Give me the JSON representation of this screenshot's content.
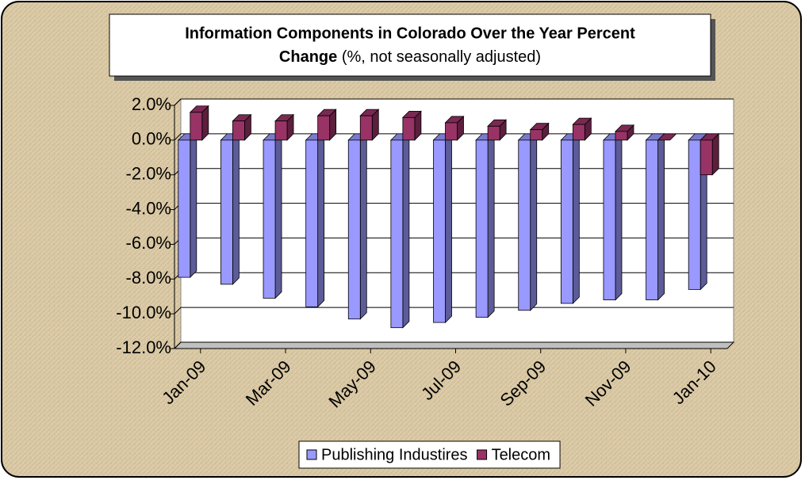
{
  "chart_data": {
    "type": "bar3d",
    "title_lines": [
      "Information Components in Colorado Over the Year Percent",
      "Change"
    ],
    "subtitle": "(%, not seasonally adjusted)",
    "categories": [
      "Jan-09",
      null,
      "Mar-09",
      null,
      "May-09",
      null,
      "Jul-09",
      null,
      "Sep-09",
      null,
      "Nov-09",
      null,
      "Jan-10"
    ],
    "series": [
      {
        "name": "Publishing Industires",
        "color": "#9999ff",
        "values": [
          -7.9,
          -8.3,
          -9.1,
          -9.6,
          -10.3,
          -10.8,
          -10.5,
          -10.2,
          -9.8,
          -9.4,
          -9.2,
          -9.2,
          -8.6
        ]
      },
      {
        "name": "Telecom",
        "color": "#993366",
        "values": [
          1.6,
          1.1,
          1.1,
          1.4,
          1.4,
          1.3,
          1.0,
          0.8,
          0.6,
          0.9,
          0.5,
          0.0,
          -2.0
        ]
      }
    ],
    "ylim": [
      -12,
      2
    ],
    "yticks": [
      {
        "value": -12,
        "label": "-12.0%"
      },
      {
        "value": -10,
        "label": "-10.0%"
      },
      {
        "value": -8,
        "label": "-8.0%"
      },
      {
        "value": -6,
        "label": "-6.0%"
      },
      {
        "value": -4,
        "label": "-4.0%"
      },
      {
        "value": -2,
        "label": "-2.0%"
      },
      {
        "value": 0,
        "label": "0.0%"
      },
      {
        "value": 2,
        "label": "2.0%"
      }
    ],
    "grid": true,
    "legend": "bottom"
  }
}
